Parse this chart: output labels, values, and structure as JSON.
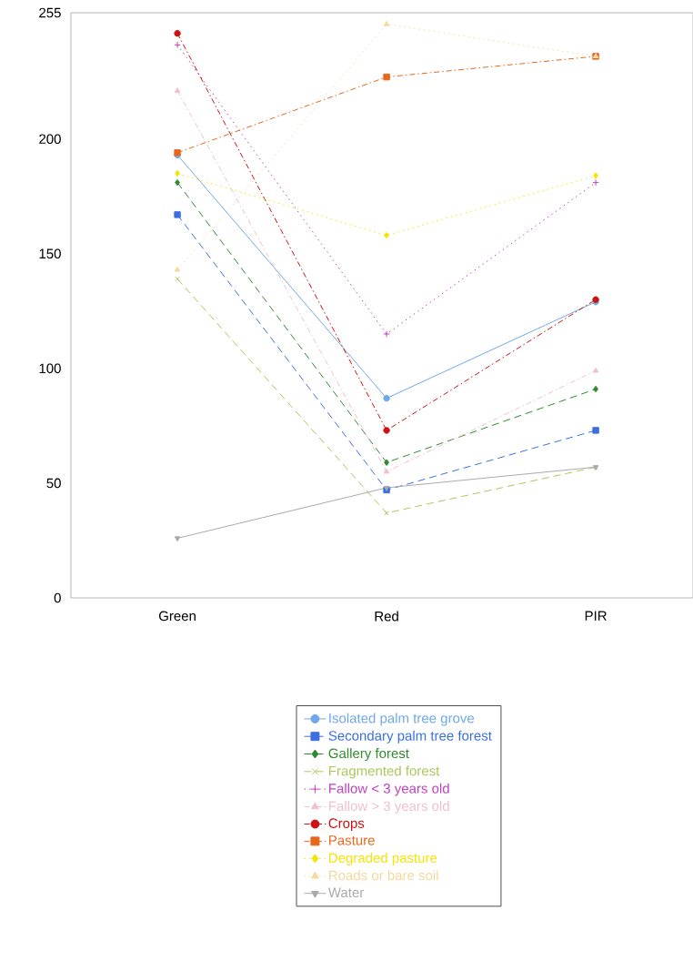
{
  "chart_data": {
    "type": "line",
    "categories": [
      "Green",
      "Red",
      "PIR"
    ],
    "ylim": [
      0,
      255
    ],
    "yticks": [
      0,
      50,
      100,
      150,
      200,
      255
    ],
    "grid": false,
    "legend": "bottom",
    "series": [
      {
        "name": "Isolated palm tree grove",
        "color": "#6fa8e8",
        "marker": "circle",
        "line_style": "solid",
        "values": [
          193,
          87,
          129
        ]
      },
      {
        "name": "Secondary palm tree forest",
        "color": "#3b6fe0",
        "marker": "square",
        "line_style": "dashed",
        "values": [
          167,
          47,
          73
        ]
      },
      {
        "name": "Gallery forest",
        "color": "#2e8b2e",
        "marker": "diamond",
        "line_style": "dashed",
        "values": [
          181,
          59,
          91
        ]
      },
      {
        "name": "Fragmented forest",
        "color": "#a8c85a",
        "marker": "cross",
        "line_style": "dashed",
        "values": [
          139,
          37,
          57
        ]
      },
      {
        "name": "Fallow < 3 years old",
        "color": "#c040c0",
        "marker": "plus",
        "line_style": "dotted",
        "values": [
          241,
          115,
          181
        ]
      },
      {
        "name": "Fallow > 3 years old",
        "color": "#f0c0d0",
        "marker": "triangle",
        "line_style": "dashdotted",
        "values": [
          221,
          55,
          99
        ]
      },
      {
        "name": "Crops",
        "color": "#cc1111",
        "marker": "circle",
        "line_style": "dashdotted",
        "values": [
          246,
          73,
          130
        ]
      },
      {
        "name": "Pasture",
        "color": "#e8661a",
        "marker": "square",
        "line_style": "dashdotted",
        "values": [
          194,
          227,
          236
        ]
      },
      {
        "name": "Degraded pasture",
        "color": "#f5e400",
        "marker": "diamond",
        "line_style": "dotted",
        "values": [
          185,
          158,
          184
        ]
      },
      {
        "name": "Roads or bare soil",
        "color": "#f5d8a0",
        "marker": "triangle",
        "line_style": "dotted",
        "values": [
          143,
          250,
          236
        ]
      },
      {
        "name": "Water",
        "color": "#aaaaaa",
        "marker": "triangle down",
        "line_style": "solid",
        "values": [
          26,
          48,
          57
        ]
      }
    ]
  }
}
